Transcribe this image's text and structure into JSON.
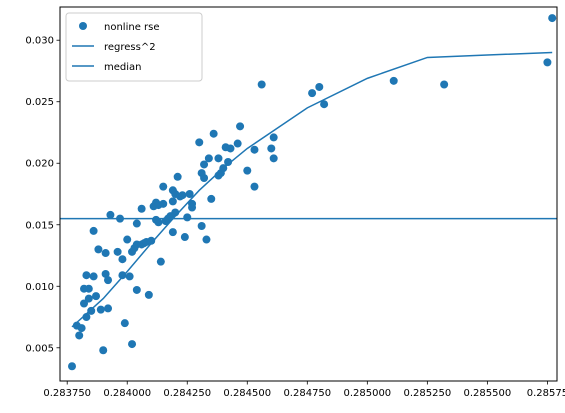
{
  "chart_data": {
    "type": "scatter",
    "title": "",
    "xlabel": "",
    "ylabel": "",
    "xlim": [
      0.28372,
      0.28579
    ],
    "ylim": [
      0.0023,
      0.0327
    ],
    "xticks": [
      0.28375,
      0.284,
      0.28425,
      0.2845,
      0.28475,
      0.285,
      0.28525,
      0.2855,
      0.28575
    ],
    "xtick_labels": [
      "0.283750",
      "0.284000",
      "0.284250",
      "0.284500",
      "0.284750",
      "0.285000",
      "0.285250",
      "0.285500",
      "0.28575"
    ],
    "yticks": [
      0.005,
      0.01,
      0.015,
      0.02,
      0.025,
      0.03
    ],
    "ytick_labels": [
      "0.005",
      "0.010",
      "0.015",
      "0.020",
      "0.025",
      "0.030"
    ],
    "grid": false,
    "legend_position": "top-left",
    "series": [
      {
        "name": "nonline rse",
        "kind": "scatter",
        "color": "#1f77b4",
        "points": [
          [
            0.28377,
            0.0035
          ],
          [
            0.28379,
            0.0068
          ],
          [
            0.2838,
            0.006
          ],
          [
            0.28381,
            0.0066
          ],
          [
            0.28382,
            0.0098
          ],
          [
            0.28382,
            0.0086
          ],
          [
            0.28383,
            0.0075
          ],
          [
            0.28383,
            0.0109
          ],
          [
            0.28384,
            0.0098
          ],
          [
            0.28384,
            0.009
          ],
          [
            0.28385,
            0.008
          ],
          [
            0.28386,
            0.0145
          ],
          [
            0.28386,
            0.0108
          ],
          [
            0.28387,
            0.0092
          ],
          [
            0.28388,
            0.013
          ],
          [
            0.28389,
            0.0081
          ],
          [
            0.2839,
            0.0048
          ],
          [
            0.28391,
            0.0127
          ],
          [
            0.28391,
            0.011
          ],
          [
            0.28392,
            0.0105
          ],
          [
            0.28392,
            0.0082
          ],
          [
            0.28393,
            0.0158
          ],
          [
            0.28396,
            0.0128
          ],
          [
            0.28397,
            0.0155
          ],
          [
            0.28398,
            0.0122
          ],
          [
            0.28398,
            0.0109
          ],
          [
            0.28399,
            0.007
          ],
          [
            0.284,
            0.0138
          ],
          [
            0.28401,
            0.0108
          ],
          [
            0.28402,
            0.0128
          ],
          [
            0.28402,
            0.0053
          ],
          [
            0.28403,
            0.0131
          ],
          [
            0.28404,
            0.0151
          ],
          [
            0.28404,
            0.0134
          ],
          [
            0.28404,
            0.0097
          ],
          [
            0.28406,
            0.0163
          ],
          [
            0.28406,
            0.0134
          ],
          [
            0.28407,
            0.0135
          ],
          [
            0.28408,
            0.0136
          ],
          [
            0.28409,
            0.0093
          ],
          [
            0.2841,
            0.0137
          ],
          [
            0.28411,
            0.0165
          ],
          [
            0.28412,
            0.0168
          ],
          [
            0.28412,
            0.0154
          ],
          [
            0.28413,
            0.0166
          ],
          [
            0.28413,
            0.0152
          ],
          [
            0.28414,
            0.012
          ],
          [
            0.28415,
            0.0181
          ],
          [
            0.28415,
            0.0167
          ],
          [
            0.28416,
            0.0153
          ],
          [
            0.28417,
            0.0155
          ],
          [
            0.28418,
            0.0157
          ],
          [
            0.28419,
            0.0178
          ],
          [
            0.28419,
            0.0169
          ],
          [
            0.28419,
            0.0144
          ],
          [
            0.2842,
            0.0175
          ],
          [
            0.2842,
            0.016
          ],
          [
            0.28421,
            0.0189
          ],
          [
            0.28422,
            0.0173
          ],
          [
            0.28423,
            0.0174
          ],
          [
            0.28424,
            0.014
          ],
          [
            0.28425,
            0.0156
          ],
          [
            0.28426,
            0.0175
          ],
          [
            0.28427,
            0.0167
          ],
          [
            0.28427,
            0.0164
          ],
          [
            0.2843,
            0.0217
          ],
          [
            0.28431,
            0.0192
          ],
          [
            0.28431,
            0.0149
          ],
          [
            0.28432,
            0.0199
          ],
          [
            0.28432,
            0.0188
          ],
          [
            0.28433,
            0.0138
          ],
          [
            0.28434,
            0.0204
          ],
          [
            0.28435,
            0.0171
          ],
          [
            0.28436,
            0.0224
          ],
          [
            0.28438,
            0.0204
          ],
          [
            0.28438,
            0.019
          ],
          [
            0.28439,
            0.0192
          ],
          [
            0.2844,
            0.0196
          ],
          [
            0.28441,
            0.0213
          ],
          [
            0.28442,
            0.0201
          ],
          [
            0.28443,
            0.0212
          ],
          [
            0.28446,
            0.0216
          ],
          [
            0.28447,
            0.023
          ],
          [
            0.2845,
            0.0194
          ],
          [
            0.28453,
            0.0181
          ],
          [
            0.28453,
            0.0211
          ],
          [
            0.28456,
            0.0264
          ],
          [
            0.2846,
            0.0212
          ],
          [
            0.28461,
            0.0204
          ],
          [
            0.28461,
            0.0221
          ],
          [
            0.28477,
            0.0257
          ],
          [
            0.2848,
            0.0262
          ],
          [
            0.28482,
            0.0248
          ],
          [
            0.28511,
            0.0267
          ],
          [
            0.28532,
            0.0264
          ],
          [
            0.28575,
            0.0282
          ],
          [
            0.28577,
            0.0318
          ]
        ]
      },
      {
        "name": "regress^2",
        "kind": "line",
        "color": "#1f77b4",
        "x": [
          0.28377,
          0.2839,
          0.284,
          0.2841,
          0.2842,
          0.2843,
          0.2844,
          0.2845,
          0.28475,
          0.285,
          0.28525,
          0.2855,
          0.28577
        ],
        "y": [
          0.0067,
          0.009,
          0.0112,
          0.0135,
          0.0157,
          0.0178,
          0.0196,
          0.0212,
          0.0245,
          0.0269,
          0.0286,
          0.0288,
          0.029
        ]
      },
      {
        "name": "median",
        "kind": "hline",
        "color": "#1f77b4",
        "y": 0.0155
      }
    ]
  }
}
